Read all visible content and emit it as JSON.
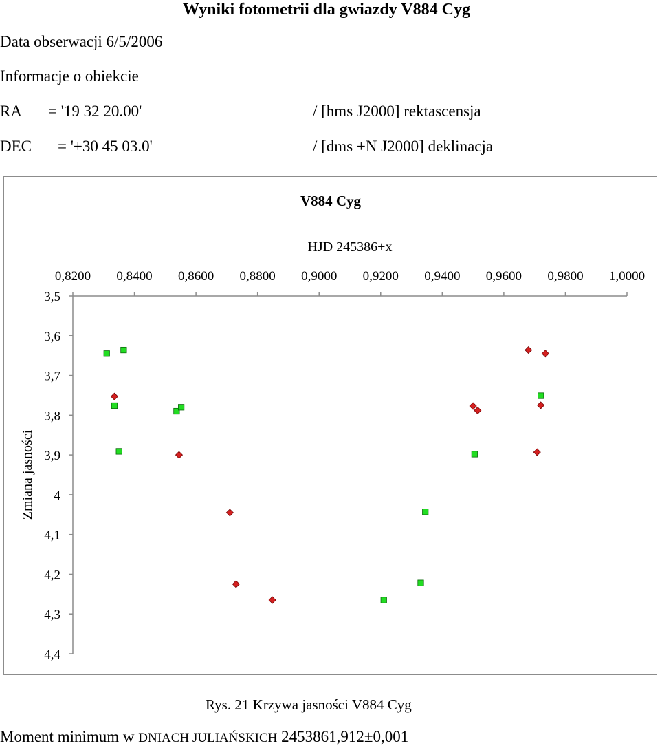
{
  "header": {
    "title": "Wyniki fotometrii dla gwiazdy V884 Cyg"
  },
  "info": {
    "date_line": "Data obserwacji 6/5/2006",
    "object_line": "Informacje o obiekcie",
    "ra_label": "RA",
    "ra_value": "= '19 32 20.00'",
    "ra_comment": "/ [hms J2000] rektascensja",
    "dec_label": "DEC",
    "dec_value": "= '+30 45 03.0'",
    "dec_comment": "/ [dms +N J2000] deklinacja"
  },
  "chart_data": {
    "type": "scatter",
    "title": "V884 Cyg",
    "xlabel": "HJD 245386+x",
    "ylabel": "Zmiana jasności",
    "xlim": [
      0.82,
      1.0
    ],
    "ylim": [
      3.5,
      4.4
    ],
    "y_inverted": true,
    "x_axis_position": "top",
    "x_ticks": [
      "0,8200",
      "0,8400",
      "0,8600",
      "0,8800",
      "0,9000",
      "0,9200",
      "0,9400",
      "0,9600",
      "0,9800",
      "1,0000"
    ],
    "y_ticks": [
      "3,5",
      "3,6",
      "3,7",
      "3,8",
      "3,9",
      "4",
      "4,1",
      "4,2",
      "4,3",
      "4,4"
    ],
    "grid": false,
    "legend": "none",
    "series": [
      {
        "marker": "diamond",
        "color": "#d42020",
        "points": [
          [
            0.8335,
            3.753
          ],
          [
            0.8545,
            3.9
          ],
          [
            0.871,
            4.045
          ],
          [
            0.873,
            4.225
          ],
          [
            0.8848,
            4.265
          ],
          [
            0.95,
            3.777
          ],
          [
            0.9515,
            3.788
          ],
          [
            0.968,
            3.636
          ],
          [
            0.9708,
            3.893
          ],
          [
            0.972,
            3.775
          ],
          [
            0.9735,
            3.645
          ]
        ]
      },
      {
        "marker": "square",
        "color": "#22dd22",
        "points": [
          [
            0.831,
            3.645
          ],
          [
            0.8335,
            3.776
          ],
          [
            0.835,
            3.891
          ],
          [
            0.8365,
            3.636
          ],
          [
            0.8537,
            3.79
          ],
          [
            0.8552,
            3.78
          ],
          [
            0.921,
            4.265
          ],
          [
            0.933,
            4.222
          ],
          [
            0.9345,
            4.043
          ],
          [
            0.9505,
            3.898
          ],
          [
            0.972,
            3.751
          ]
        ]
      }
    ]
  },
  "caption": "Rys. 21 Krzywa jasności V884 Cyg",
  "footer": {
    "prefix": "Moment minimum w ",
    "smallcaps": "DNIACH JULIAŃSKICH",
    "value": " 2453861,912±0,001"
  }
}
